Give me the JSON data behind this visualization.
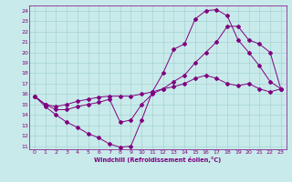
{
  "xlabel": "Windchill (Refroidissement éolien,°C)",
  "bg_color": "#c8eaea",
  "line_color": "#800080",
  "grid_color": "#a0cccc",
  "xlim": [
    -0.5,
    23.5
  ],
  "ylim": [
    10.7,
    24.5
  ],
  "xticks": [
    0,
    1,
    2,
    3,
    4,
    5,
    6,
    7,
    8,
    9,
    10,
    11,
    12,
    13,
    14,
    15,
    16,
    17,
    18,
    19,
    20,
    21,
    22,
    23
  ],
  "yticks": [
    11,
    12,
    13,
    14,
    15,
    16,
    17,
    18,
    19,
    20,
    21,
    22,
    23,
    24
  ],
  "line1_x": [
    0,
    1,
    2,
    3,
    4,
    5,
    6,
    7,
    8,
    9,
    10,
    11,
    12,
    13,
    14,
    15,
    16,
    17,
    18,
    19,
    20,
    21,
    22,
    23
  ],
  "line1_y": [
    15.8,
    14.8,
    14.0,
    13.3,
    12.8,
    12.2,
    11.8,
    11.2,
    10.9,
    11.0,
    13.5,
    16.2,
    18.0,
    20.3,
    20.8,
    23.2,
    24.0,
    24.1,
    23.5,
    21.2,
    20.0,
    18.7,
    17.2,
    16.5
  ],
  "line2_x": [
    0,
    1,
    2,
    3,
    4,
    5,
    6,
    7,
    8,
    9,
    10,
    11,
    12,
    13,
    14,
    15,
    16,
    17,
    18,
    19,
    20,
    21,
    22,
    23
  ],
  "line2_y": [
    15.8,
    15.0,
    14.5,
    14.5,
    14.8,
    15.0,
    15.2,
    15.5,
    13.3,
    13.5,
    15.0,
    16.0,
    16.5,
    17.2,
    17.8,
    19.0,
    20.0,
    21.0,
    22.5,
    22.5,
    21.2,
    20.8,
    20.0,
    16.5
  ],
  "line3_x": [
    0,
    1,
    2,
    3,
    4,
    5,
    6,
    7,
    8,
    9,
    10,
    11,
    12,
    13,
    14,
    15,
    16,
    17,
    18,
    19,
    20,
    21,
    22,
    23
  ],
  "line3_y": [
    15.8,
    15.0,
    14.8,
    15.0,
    15.3,
    15.5,
    15.7,
    15.8,
    15.8,
    15.8,
    16.0,
    16.2,
    16.5,
    16.7,
    17.0,
    17.5,
    17.8,
    17.5,
    17.0,
    16.8,
    17.0,
    16.5,
    16.2,
    16.5
  ]
}
